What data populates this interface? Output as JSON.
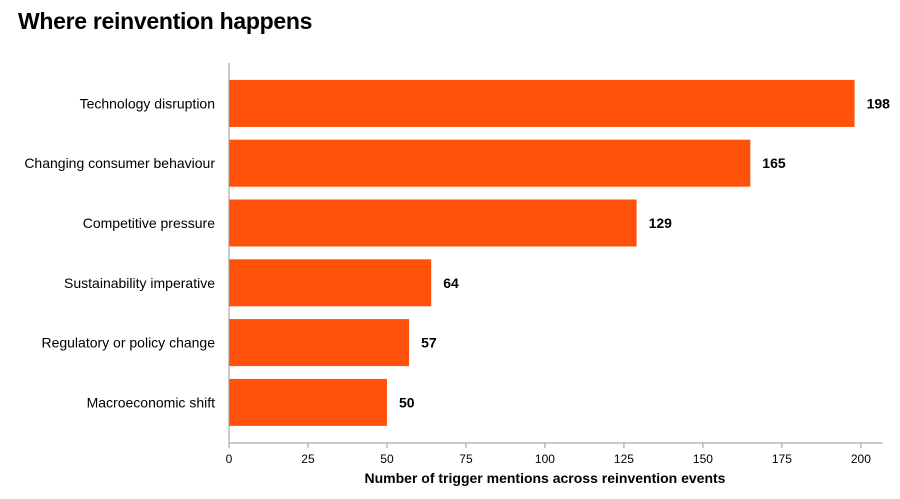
{
  "chart_data": {
    "type": "bar",
    "orientation": "horizontal",
    "title": "Where reinvention happens",
    "xlabel": "Number of trigger mentions across reinvention events",
    "ylabel": "",
    "categories": [
      "Technology disruption",
      "Changing consumer behaviour",
      "Competitive pressure",
      "Sustainability imperative",
      "Regulatory or policy change",
      "Macroeconomic shift"
    ],
    "values": [
      198,
      165,
      129,
      64,
      57,
      50
    ],
    "xlim": [
      0,
      207
    ],
    "xticks": [
      0,
      25,
      50,
      75,
      100,
      125,
      150,
      175,
      200
    ],
    "bar_color": "#FF5109",
    "grid": false,
    "legend": "none"
  }
}
